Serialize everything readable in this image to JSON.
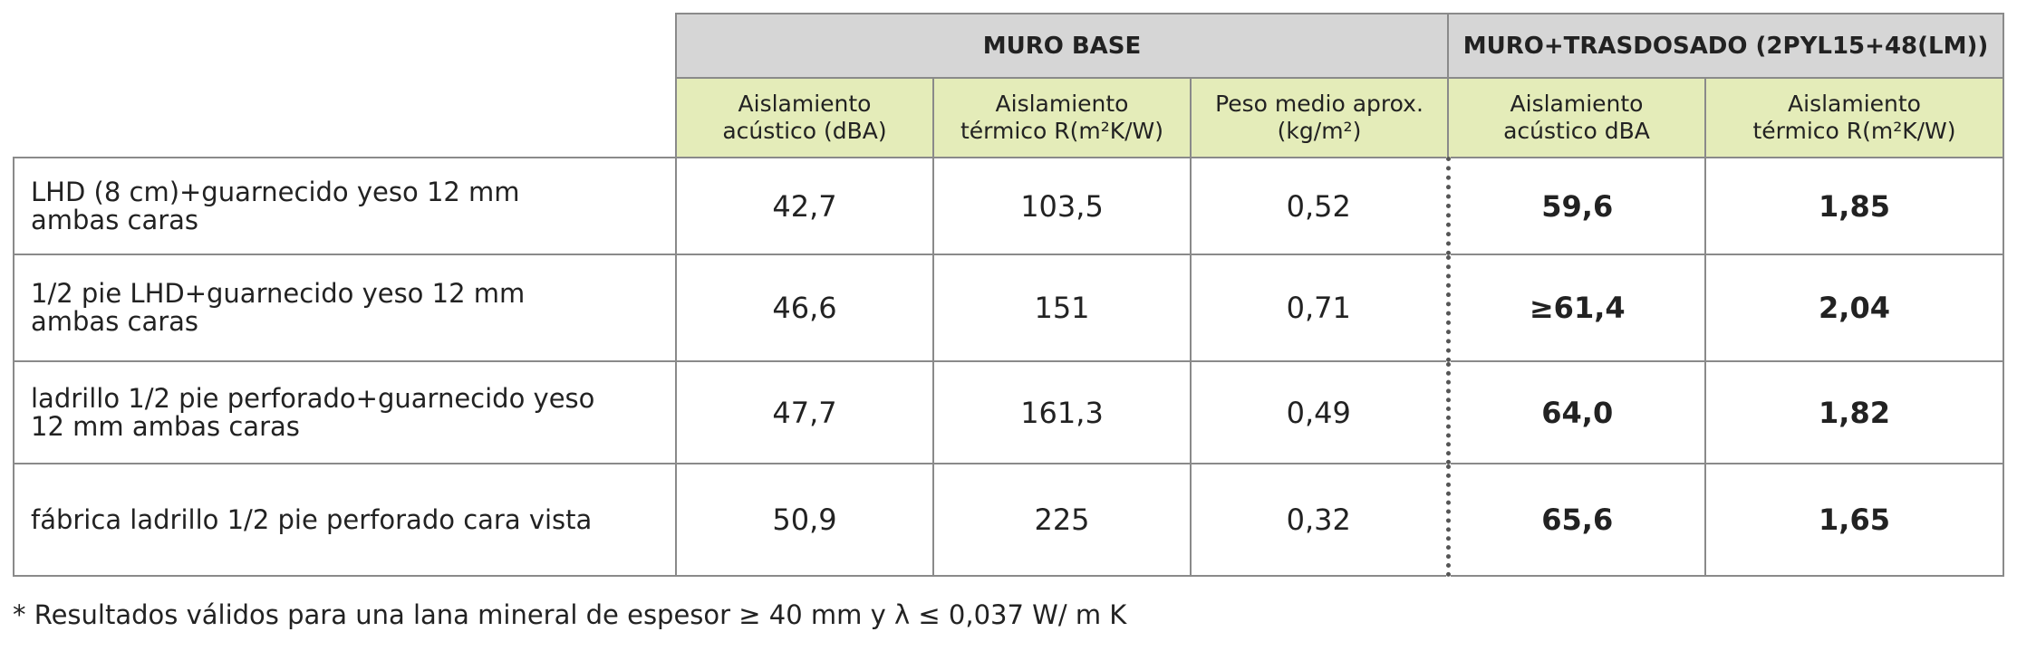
{
  "table": {
    "group_headers": [
      "MURO BASE",
      "MURO+TRASDOSADO (2PYL15+48(LM))"
    ],
    "sub_headers": [
      [
        "Aislamiento",
        "acústico (dBA)"
      ],
      [
        "Aislamiento",
        "térmico  R(m²K/W)"
      ],
      [
        "Peso medio aprox.",
        "(kg/m²)"
      ],
      [
        "Aislamiento",
        "acústico dBA"
      ],
      [
        "Aislamiento",
        "térmico  R(m²K/W)"
      ]
    ],
    "rows": [
      {
        "label": [
          "LHD (8 cm)+guarnecido yeso 12 mm",
          "ambas caras"
        ],
        "cells": [
          "42,7",
          "103,5",
          "0,52",
          "59,6",
          "1,85"
        ]
      },
      {
        "label": [
          "1/2 pie LHD+guarnecido yeso 12 mm",
          "ambas caras"
        ],
        "cells": [
          "46,6",
          "151",
          "0,71",
          "≥61,4",
          "2,04"
        ]
      },
      {
        "label": [
          "ladrillo 1/2 pie perforado+guarnecido yeso",
          "12 mm ambas caras"
        ],
        "cells": [
          "47,7",
          "161,3",
          "0,49",
          "64,0",
          "1,82"
        ]
      },
      {
        "label": [
          "fábrica ladrillo 1/2 pie perforado cara vista"
        ],
        "cells": [
          "50,9",
          "225",
          "0,32",
          "65,6",
          "1,65"
        ]
      }
    ]
  },
  "footnote": "* Resultados válidos para una lana mineral de espesor ≥ 40 mm y λ ≤ 0,037 W/ m K"
}
